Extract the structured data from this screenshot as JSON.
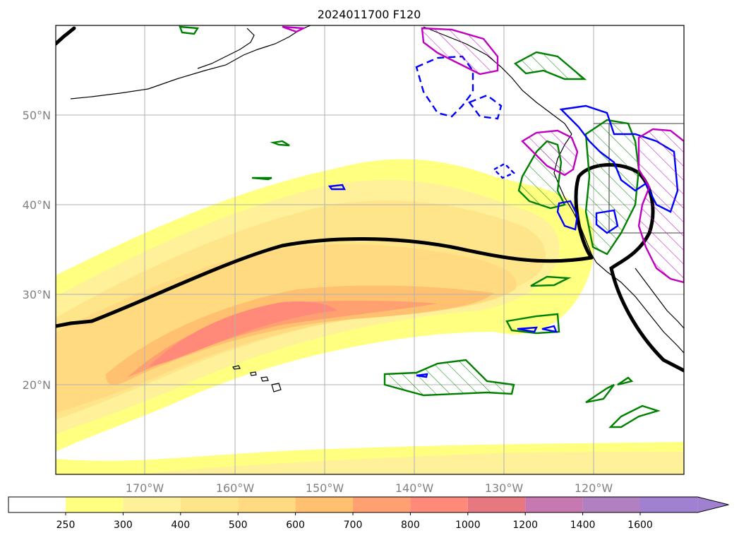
{
  "title": "2024011700 F120",
  "map": {
    "region": "North Pacific / West Coast of North America",
    "projection": "PlateCarree",
    "lon_range": [
      -180,
      -110
    ],
    "lat_range": [
      10,
      60
    ],
    "gridlines": true,
    "lat_labels": [
      {
        "value": 20,
        "text": "20°N"
      },
      {
        "value": 30,
        "text": "30°N"
      },
      {
        "value": 40,
        "text": "40°N"
      },
      {
        "value": 50,
        "text": "50°N"
      }
    ],
    "lon_labels": [
      {
        "value": -170,
        "text": "170°W"
      },
      {
        "value": -160,
        "text": "160°W"
      },
      {
        "value": -150,
        "text": "150°W"
      },
      {
        "value": -140,
        "text": "140°W"
      },
      {
        "value": -130,
        "text": "130°W"
      },
      {
        "value": -120,
        "text": "120°W"
      }
    ]
  },
  "colorbar": {
    "levels": [
      "250",
      "300",
      "400",
      "500",
      "600",
      "700",
      "800",
      "1000",
      "1200",
      "1400",
      "1600"
    ],
    "colors": [
      "#ffffff",
      "#ffff80",
      "#fff09a",
      "#ffe58a",
      "#ffda80",
      "#ffc070",
      "#ffa070",
      "#ff8a7a",
      "#e87880",
      "#c878b0",
      "#b080c0",
      "#a080d0"
    ],
    "extend": "max"
  },
  "legend_colors": {
    "contour_black": "#000000",
    "contour_green": "#008000",
    "contour_blue": "#0000ff",
    "contour_magenta": "#c000c0"
  }
}
